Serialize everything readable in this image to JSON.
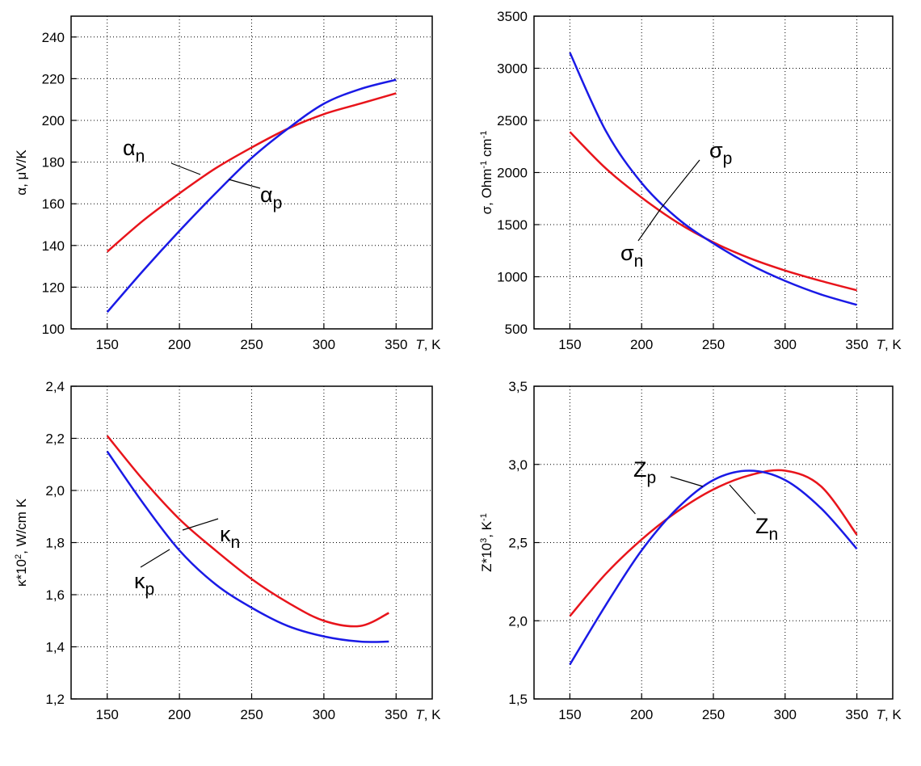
{
  "chart_data": [
    {
      "type": "line",
      "x_label": "T, K",
      "y_label": "α,  μV/K",
      "xlim": [
        125,
        375
      ],
      "xticks": [
        150,
        200,
        250,
        300,
        350
      ],
      "ylim": [
        100,
        250
      ],
      "yticks": [
        100,
        120,
        140,
        160,
        180,
        200,
        220,
        240
      ],
      "grid": true,
      "x": [
        150,
        175,
        200,
        225,
        250,
        275,
        300,
        325,
        350
      ],
      "series": [
        {
          "name": "αn",
          "color": "#e8141b",
          "values": [
            137,
            152,
            165,
            177,
            187,
            196,
            203,
            208,
            213
          ]
        },
        {
          "name": "αp",
          "color": "#1a1ae6",
          "values": [
            108,
            128,
            147,
            165,
            182,
            196,
            208,
            215,
            219.5
          ]
        }
      ],
      "annotations": [
        {
          "text": "α",
          "sub": "n"
        },
        {
          "text": "α",
          "sub": "p"
        }
      ]
    },
    {
      "type": "line",
      "x_label": "T, K",
      "y_label": [
        {
          "text": "σ, Ohm"
        },
        {
          "text": "-1",
          "sup": true
        },
        {
          "text": " cm"
        },
        {
          "text": "-1",
          "sup": true
        }
      ],
      "xlim": [
        125,
        375
      ],
      "xticks": [
        150,
        200,
        250,
        300,
        350
      ],
      "ylim": [
        500,
        3500
      ],
      "yticks": [
        500,
        1000,
        1500,
        2000,
        2500,
        3000,
        3500
      ],
      "grid": true,
      "x": [
        150,
        175,
        200,
        225,
        250,
        275,
        300,
        325,
        350
      ],
      "series": [
        {
          "name": "σn",
          "color": "#e8141b",
          "values": [
            2390,
            2040,
            1760,
            1520,
            1330,
            1180,
            1060,
            960,
            870
          ]
        },
        {
          "name": "σp",
          "color": "#1a1ae6",
          "values": [
            3150,
            2400,
            1900,
            1560,
            1320,
            1120,
            960,
            830,
            730
          ]
        }
      ],
      "annotations": [
        {
          "text": "σ",
          "sub": "p"
        },
        {
          "text": "σ",
          "sub": "n"
        }
      ]
    },
    {
      "type": "line",
      "x_label": "T, K",
      "y_label": [
        {
          "text": "κ*10"
        },
        {
          "text": "2",
          "sup": true
        },
        {
          "text": ", W/cm K"
        }
      ],
      "xlim": [
        125,
        375
      ],
      "xticks": [
        150,
        200,
        250,
        300,
        350
      ],
      "ylim": [
        1.2,
        2.4
      ],
      "yticks": [
        {
          "value": 1.2,
          "label": "1,2"
        },
        {
          "value": 1.4,
          "label": "1,4"
        },
        {
          "value": 1.6,
          "label": "1,6"
        },
        {
          "value": 1.8,
          "label": "1,8"
        },
        {
          "value": 2.0,
          "label": "2,0"
        },
        {
          "value": 2.2,
          "label": "2,2"
        },
        {
          "value": 2.4,
          "label": "2,4"
        }
      ],
      "grid": true,
      "x": [
        150,
        175,
        200,
        225,
        250,
        275,
        300,
        325,
        345
      ],
      "series": [
        {
          "name": "κn",
          "color": "#e8141b",
          "values": [
            2.21,
            2.04,
            1.89,
            1.77,
            1.66,
            1.57,
            1.5,
            1.48,
            1.53
          ]
        },
        {
          "name": "κp",
          "color": "#1a1ae6",
          "values": [
            2.15,
            1.95,
            1.77,
            1.64,
            1.55,
            1.48,
            1.44,
            1.42,
            1.42
          ]
        }
      ],
      "annotations": [
        {
          "text": "κ",
          "sub": "n"
        },
        {
          "text": "κ",
          "sub": "p"
        }
      ]
    },
    {
      "type": "line",
      "x_label": "T, K",
      "y_label": [
        {
          "text": "Z*10"
        },
        {
          "text": "3",
          "sup": true
        },
        {
          "text": ",  K"
        },
        {
          "text": "-1",
          "sup": true
        }
      ],
      "xlim": [
        125,
        375
      ],
      "xticks": [
        150,
        200,
        250,
        300,
        350
      ],
      "ylim": [
        1.5,
        3.5
      ],
      "yticks": [
        {
          "value": 1.5,
          "label": "1,5"
        },
        {
          "value": 2.0,
          "label": "2,0"
        },
        {
          "value": 2.5,
          "label": "2,5"
        },
        {
          "value": 3.0,
          "label": "3,0"
        },
        {
          "value": 3.5,
          "label": "3,5"
        }
      ],
      "grid": true,
      "x": [
        150,
        175,
        200,
        225,
        250,
        275,
        300,
        325,
        350
      ],
      "series": [
        {
          "name": "Zn",
          "color": "#e8141b",
          "values": [
            2.03,
            2.3,
            2.52,
            2.7,
            2.84,
            2.93,
            2.96,
            2.86,
            2.55
          ]
        },
        {
          "name": "Zp",
          "color": "#1a1ae6",
          "values": [
            1.72,
            2.1,
            2.45,
            2.72,
            2.9,
            2.96,
            2.9,
            2.72,
            2.46
          ]
        }
      ],
      "annotations": [
        {
          "text": "Z",
          "sub": "p"
        },
        {
          "text": "Z",
          "sub": "n"
        }
      ]
    }
  ]
}
